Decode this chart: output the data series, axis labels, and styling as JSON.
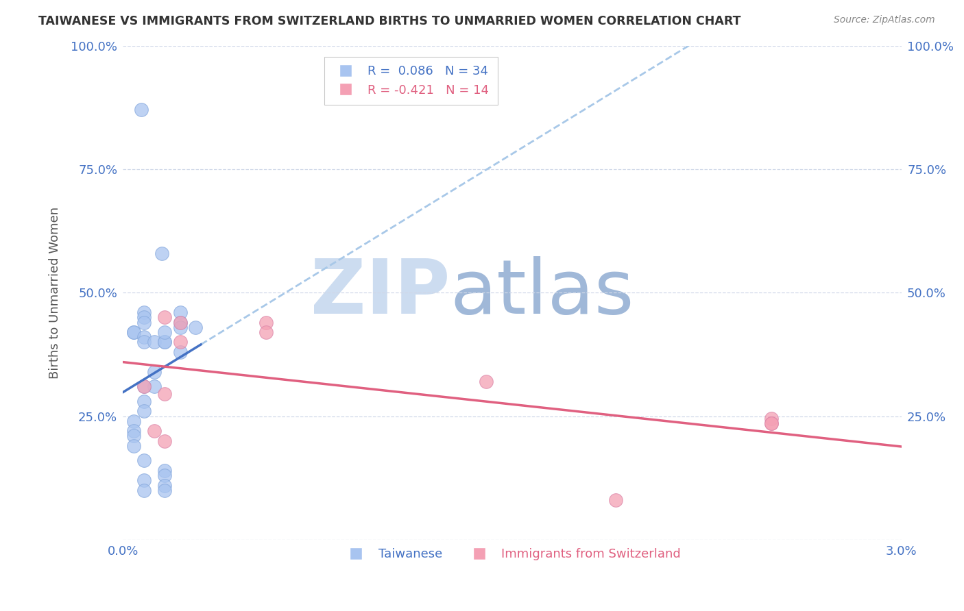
{
  "title": "TAIWANESE VS IMMIGRANTS FROM SWITZERLAND BIRTHS TO UNMARRIED WOMEN CORRELATION CHART",
  "source": "Source: ZipAtlas.com",
  "ylabel": "Births to Unmarried Women",
  "xlim": [
    0.0,
    0.03
  ],
  "ylim": [
    0.0,
    1.0
  ],
  "yticks": [
    0.0,
    0.25,
    0.5,
    0.75,
    1.0
  ],
  "ytick_labels_left": [
    "",
    "25.0%",
    "50.0%",
    "75.0%",
    "100.0%"
  ],
  "ytick_labels_right": [
    "",
    "25.0%",
    "50.0%",
    "75.0%",
    "100.0%"
  ],
  "xticks": [
    0.0,
    0.005,
    0.01,
    0.015,
    0.02,
    0.025,
    0.03
  ],
  "xtick_labels": [
    "0.0%",
    "",
    "",
    "",
    "",
    "",
    "3.0%"
  ],
  "taiwan_R": 0.086,
  "taiwan_N": 34,
  "swiss_R": -0.421,
  "swiss_N": 14,
  "taiwan_color": "#a8c4f0",
  "swiss_color": "#f4a0b4",
  "trend_taiwan_solid_color": "#4472c4",
  "trend_taiwan_dashed_color": "#a8c8e8",
  "trend_swiss_color": "#e06080",
  "watermark_zip_color": "#ccdcf0",
  "watermark_atlas_color": "#a0b8d8",
  "taiwan_x": [
    0.0007,
    0.0015,
    0.0022,
    0.0022,
    0.0028,
    0.0008,
    0.0008,
    0.0008,
    0.0004,
    0.0004,
    0.0008,
    0.0008,
    0.0012,
    0.0016,
    0.0016,
    0.0016,
    0.0022,
    0.0022,
    0.0012,
    0.0012,
    0.0008,
    0.0008,
    0.0008,
    0.0004,
    0.0004,
    0.0004,
    0.0004,
    0.0008,
    0.0016,
    0.0016,
    0.0008,
    0.0016,
    0.0016,
    0.0008
  ],
  "taiwan_y": [
    0.87,
    0.58,
    0.46,
    0.44,
    0.43,
    0.46,
    0.45,
    0.44,
    0.42,
    0.42,
    0.41,
    0.4,
    0.4,
    0.4,
    0.4,
    0.42,
    0.43,
    0.38,
    0.34,
    0.31,
    0.31,
    0.28,
    0.26,
    0.24,
    0.22,
    0.21,
    0.19,
    0.16,
    0.14,
    0.13,
    0.12,
    0.11,
    0.1,
    0.1
  ],
  "swiss_x": [
    0.0016,
    0.0022,
    0.0022,
    0.0008,
    0.0016,
    0.0012,
    0.0016,
    0.0055,
    0.0055,
    0.014,
    0.019,
    0.025,
    0.025,
    0.025
  ],
  "swiss_y": [
    0.45,
    0.44,
    0.4,
    0.31,
    0.295,
    0.22,
    0.2,
    0.44,
    0.42,
    0.32,
    0.08,
    0.245,
    0.235,
    0.235
  ],
  "trend_taiwan_solid_xrange": [
    0.0,
    0.003
  ],
  "trend_taiwan_dashed_xrange": [
    0.003,
    0.03
  ],
  "trend_swiss_xrange": [
    0.0,
    0.03
  ],
  "grid_color": "#d0d8e8",
  "tick_color": "#4472c4",
  "title_color": "#333333",
  "ylabel_color": "#555555",
  "source_color": "#888888"
}
